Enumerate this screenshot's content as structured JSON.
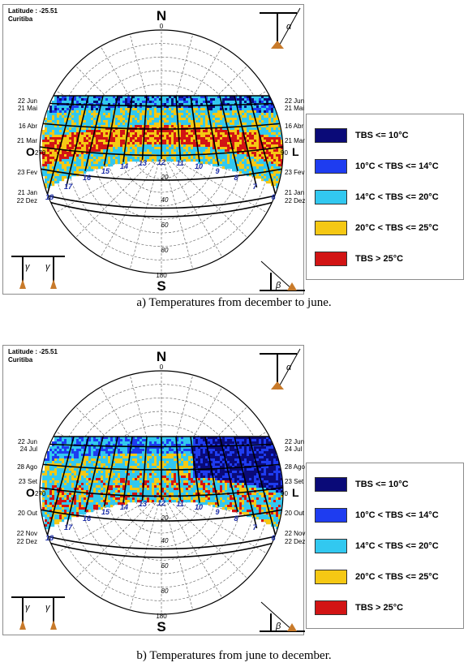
{
  "colors": {
    "below10": "#0a0a78",
    "c10_14": "#1e3cf0",
    "c14_20": "#32c8f0",
    "c20_25": "#f5c814",
    "above25": "#d21414"
  },
  "legend": [
    {
      "label": "TBS <= 10°C",
      "color": "#0a0a78"
    },
    {
      "label": "10°C < TBS <= 14°C",
      "color": "#1e3cf0"
    },
    {
      "label": "14°C < TBS <= 20°C",
      "color": "#32c8f0"
    },
    {
      "label": "20°C < TBS <= 25°C",
      "color": "#f5c814"
    },
    {
      "label": "TBS > 25°C",
      "color": "#d21414"
    }
  ],
  "compass": {
    "N": "N",
    "S": "S",
    "O": "O",
    "L": "L",
    "n_deg": "0",
    "s_deg": "180",
    "o_deg": "270",
    "l_deg": "90"
  },
  "altitudes": [
    "20",
    "40",
    "60",
    "80"
  ],
  "hours": [
    "18",
    "17",
    "16",
    "15",
    "14",
    "13",
    "12",
    "11",
    "10",
    "9",
    "8",
    "7",
    "6"
  ],
  "angle_labels": {
    "alpha": "α",
    "beta": "β",
    "gamma": "γ"
  },
  "panels": [
    {
      "latitude": "Latitude : -25.51",
      "city": "Curitiba",
      "dates_left": [
        "22 Jun",
        "21 Mai",
        "16 Abr",
        "21 Mar",
        "23 Fev",
        "21 Jan",
        "22 Dez"
      ],
      "dates_right": [
        "22 Jun",
        "21 Mai",
        "16 Abr",
        "21 Mar",
        "23 Fev",
        "21 Jan",
        "22 Dez"
      ],
      "caption": "a) Temperatures from december to june."
    },
    {
      "latitude": "Latitude : -25.51",
      "city": "Curitiba",
      "dates_left": [
        "22 Jun",
        "24 Jul",
        "28 Ago",
        "23 Set",
        "20 Out",
        "22 Nov",
        "22 Dez"
      ],
      "dates_right": [
        "22 Jun",
        "24 Jul",
        "28 Ago",
        "23 Set",
        "20 Out",
        "22 Nov",
        "22 Dez"
      ],
      "caption": "b) Temperatures from june to december."
    }
  ]
}
